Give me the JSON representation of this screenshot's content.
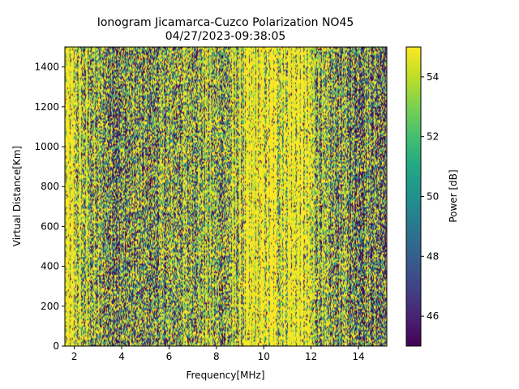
{
  "chart_data": {
    "type": "heatmap",
    "title_line1": "Ionogram Jicamarca-Cuzco Polarization NO45",
    "title_line2": "04/27/2023-09:38:05",
    "xlabel": "Frequency[MHz]",
    "ylabel": "Virtual Distance[Km]",
    "colorbar_label": "Power [dB]",
    "xlim": [
      1.6,
      15.2
    ],
    "ylim": [
      0,
      1500
    ],
    "xticks": [
      2,
      4,
      6,
      8,
      10,
      12,
      14
    ],
    "yticks": [
      0,
      200,
      400,
      600,
      800,
      1000,
      1200,
      1400
    ],
    "clim": [
      45,
      55
    ],
    "colorbar_ticks": [
      46,
      48,
      50,
      52,
      54
    ],
    "colormap": "viridis",
    "grid": false,
    "frequency_profile": {
      "frequencies": [
        1.6,
        2.0,
        2.4,
        2.8,
        3.2,
        3.6,
        4.0,
        4.4,
        4.8,
        5.2,
        5.6,
        6.0,
        6.4,
        6.8,
        7.2,
        7.6,
        8.0,
        8.4,
        8.8,
        9.2,
        9.6,
        10.0,
        10.4,
        10.8,
        11.2,
        11.6,
        12.0,
        12.4,
        12.8,
        13.2,
        13.6,
        14.0,
        14.4,
        14.8,
        15.2
      ],
      "typical_power_db": [
        54.5,
        53.5,
        52,
        51,
        50.5,
        49.5,
        49,
        50,
        49,
        49.5,
        50,
        50.5,
        51,
        51,
        52,
        51.5,
        51,
        50.5,
        52,
        53.5,
        54,
        54.5,
        55,
        55,
        55,
        54.8,
        53.5,
        51,
        50,
        50.5,
        49.5,
        49,
        50,
        49,
        50
      ]
    }
  }
}
